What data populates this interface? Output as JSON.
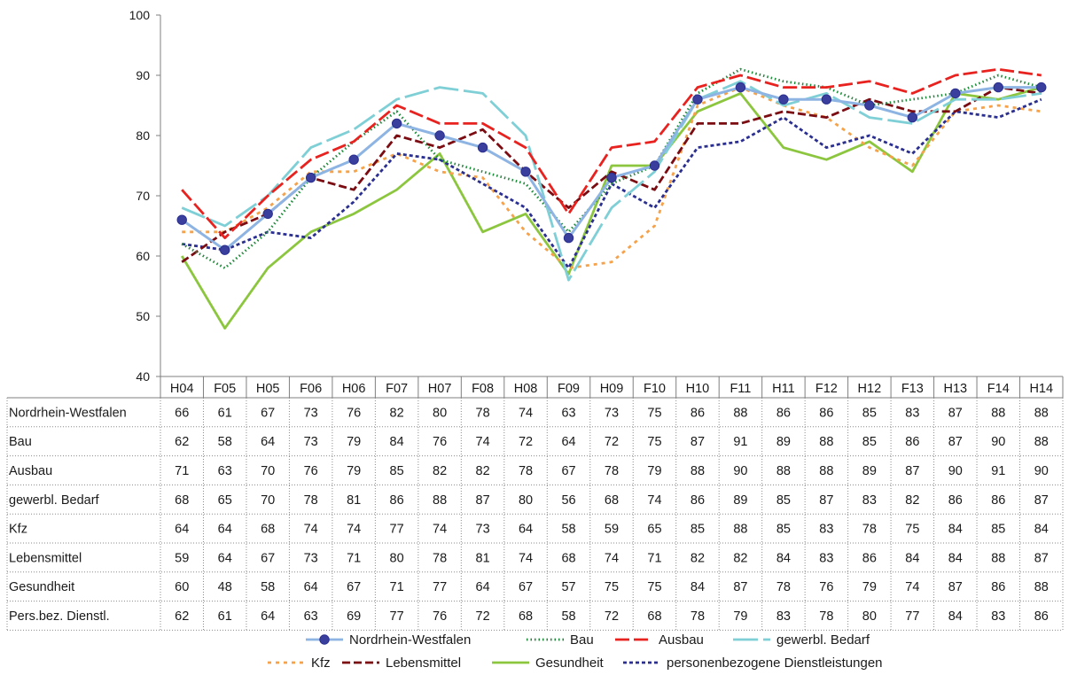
{
  "chart_data": {
    "type": "line",
    "ylim": [
      40,
      100
    ],
    "yticks": [
      40,
      50,
      60,
      70,
      80,
      90,
      100
    ],
    "categories": [
      "H04",
      "F05",
      "H05",
      "F06",
      "H06",
      "F07",
      "H07",
      "F08",
      "H08",
      "F09",
      "H09",
      "F10",
      "H10",
      "F11",
      "H11",
      "F12",
      "H12",
      "F13",
      "H13",
      "F14",
      "H14"
    ],
    "series": [
      {
        "name": "Nordrhein-Westfalen",
        "table_label": "Nordrhein-Westfalen",
        "color": "#8db4e2",
        "dash": "",
        "marker": "circle",
        "values": [
          66,
          61,
          67,
          73,
          76,
          82,
          80,
          78,
          74,
          63,
          73,
          75,
          86,
          88,
          86,
          86,
          85,
          83,
          87,
          88,
          88
        ]
      },
      {
        "name": "Bau",
        "table_label": "Bau",
        "color": "#1f8a3a",
        "dash": "1.5 3",
        "marker": "",
        "values": [
          62,
          58,
          64,
          73,
          79,
          84,
          76,
          74,
          72,
          64,
          72,
          75,
          87,
          91,
          89,
          88,
          85,
          86,
          87,
          90,
          88
        ]
      },
      {
        "name": "Ausbau",
        "table_label": "Ausbau",
        "color": "#e8221f",
        "dash": "16 5",
        "marker": "",
        "values": [
          71,
          63,
          70,
          76,
          79,
          85,
          82,
          82,
          78,
          67,
          78,
          79,
          88,
          90,
          88,
          88,
          89,
          87,
          90,
          91,
          90
        ]
      },
      {
        "name": "gewerbl. Bedarf",
        "table_label": "gewerbl. Bedarf",
        "color": "#7fcfd6",
        "dash": "28 6",
        "marker": "",
        "values": [
          68,
          65,
          70,
          78,
          81,
          86,
          88,
          87,
          80,
          56,
          68,
          74,
          86,
          89,
          85,
          87,
          83,
          82,
          86,
          86,
          87
        ]
      },
      {
        "name": "Kfz",
        "table_label": "Kfz",
        "color": "#f5a24a",
        "dash": "4 5",
        "marker": "",
        "values": [
          64,
          64,
          68,
          74,
          74,
          77,
          74,
          73,
          64,
          58,
          59,
          65,
          85,
          88,
          85,
          83,
          78,
          75,
          84,
          85,
          84
        ]
      },
      {
        "name": "Lebensmittel",
        "table_label": "Lebensmittel",
        "color": "#7a0c12",
        "dash": "9 4",
        "marker": "",
        "values": [
          59,
          64,
          67,
          73,
          71,
          80,
          78,
          81,
          74,
          68,
          74,
          71,
          82,
          82,
          84,
          83,
          86,
          84,
          84,
          88,
          87
        ]
      },
      {
        "name": "Gesundheit",
        "table_label": "Gesundheit",
        "color": "#8cc63f",
        "dash": "",
        "marker": "",
        "values": [
          60,
          48,
          58,
          64,
          67,
          71,
          77,
          64,
          67,
          57,
          75,
          75,
          84,
          87,
          78,
          76,
          79,
          74,
          87,
          86,
          88
        ]
      },
      {
        "name": "personenbezogene Dienstleistungen",
        "table_label": "Pers.bez. Dienstl.",
        "color": "#2b2f8f",
        "dash": "4 3",
        "marker": "",
        "values": [
          62,
          61,
          64,
          63,
          69,
          77,
          76,
          72,
          68,
          58,
          72,
          68,
          78,
          79,
          83,
          78,
          80,
          77,
          84,
          83,
          86
        ]
      }
    ],
    "legend": "bottom-center",
    "grid": false
  }
}
